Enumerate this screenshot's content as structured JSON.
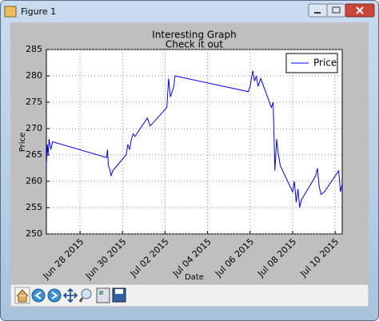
{
  "window": {
    "title": "Figure 1"
  },
  "chart_data": {
    "type": "line",
    "title": "Interesting Graph",
    "subtitle": "Check it out",
    "x_label": "Date",
    "y_label": "Price",
    "x": [
      "2015-06-26T10:00",
      "2015-06-26T11:00",
      "2015-06-26T12:00",
      "2015-06-26T13:00",
      "2015-06-26T15:00",
      "2015-06-26T17:00",
      "2015-06-29T06:00",
      "2015-06-29T07:00",
      "2015-06-29T08:00",
      "2015-06-29T10:00",
      "2015-06-29T11:00",
      "2015-06-29T13:00",
      "2015-06-30T04:00",
      "2015-06-30T06:00",
      "2015-06-30T08:00",
      "2015-06-30T10:00",
      "2015-06-30T12:00",
      "2015-06-30T14:00",
      "2015-07-01T04:00",
      "2015-07-01T07:00",
      "2015-07-01T10:00",
      "2015-07-02T02:00",
      "2015-07-02T04:00",
      "2015-07-02T06:00",
      "2015-07-02T08:00",
      "2015-07-02T10:00",
      "2015-07-02T11:00",
      "2015-07-05T22:00",
      "2015-07-06T00:00",
      "2015-07-06T03:00",
      "2015-07-06T05:00",
      "2015-07-06T07:00",
      "2015-07-06T09:00",
      "2015-07-06T12:00",
      "2015-07-07T00:00",
      "2015-07-07T02:00",
      "2015-07-07T04:00",
      "2015-07-07T06:00",
      "2015-07-07T08:00",
      "2015-07-07T10:00",
      "2015-07-08T00:00",
      "2015-07-08T02:00",
      "2015-07-08T04:00",
      "2015-07-08T06:00",
      "2015-07-08T08:00",
      "2015-07-08T10:00",
      "2015-07-09T02:00",
      "2015-07-09T04:00",
      "2015-07-09T06:00",
      "2015-07-09T08:00",
      "2015-07-09T12:00",
      "2015-07-10T04:00",
      "2015-07-10T06:00",
      "2015-07-10T08:00"
    ],
    "series": [
      {
        "name": "Price",
        "color": "#0000ff",
        "values": [
          263,
          267,
          265,
          268,
          266,
          267.5,
          264.5,
          266,
          263,
          262,
          261,
          262,
          265,
          267,
          266,
          268,
          269,
          268.5,
          272,
          270.5,
          271,
          274,
          279.5,
          276,
          277,
          278,
          280,
          277,
          278,
          281,
          279,
          280,
          278,
          279.5,
          274,
          275,
          262,
          268,
          265,
          263,
          258,
          260,
          256,
          258.5,
          255,
          256.5,
          261,
          262.5,
          259,
          257.5,
          258,
          262,
          258,
          259.5
        ]
      }
    ],
    "xlim": [
      "2015-06-26T10:00",
      "2015-07-10T08:00"
    ],
    "xticks": [
      {
        "value": "2015-06-28",
        "label": "Jun 28 2015"
      },
      {
        "value": "2015-06-30",
        "label": "Jun 30 2015"
      },
      {
        "value": "2015-07-02",
        "label": "Jul 02 2015"
      },
      {
        "value": "2015-07-04",
        "label": "Jul 04 2015"
      },
      {
        "value": "2015-07-06",
        "label": "Jul 06 2015"
      },
      {
        "value": "2015-07-08",
        "label": "Jul 08 2015"
      },
      {
        "value": "2015-07-10",
        "label": "Jul 10 2015"
      }
    ],
    "ylim": [
      250,
      285
    ],
    "yticks": [
      250,
      255,
      260,
      265,
      270,
      275,
      280,
      285
    ],
    "grid": true,
    "legend": "upper right"
  }
}
